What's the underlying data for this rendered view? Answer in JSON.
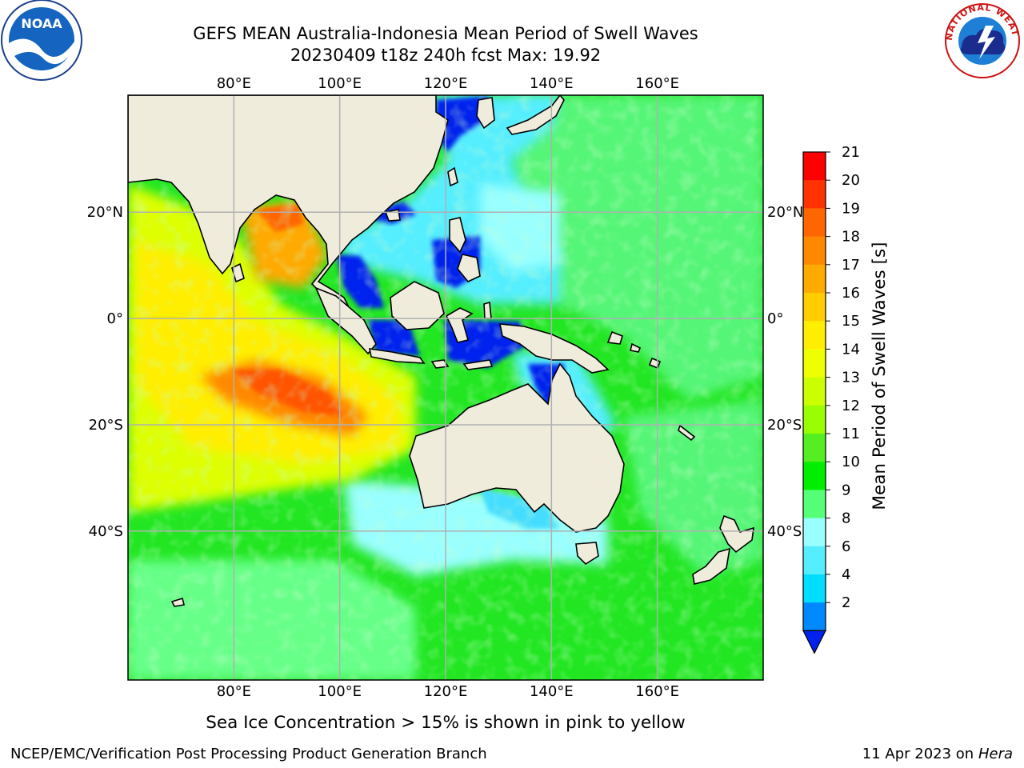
{
  "header": {
    "title_line1": "GEFS MEAN Australia-Indonesia Mean Period of Swell Waves",
    "title_line2": "20230409 t18z 240h fcst   Max: 19.92"
  },
  "logos": {
    "noaa": {
      "name": "noaa-logo",
      "text": "NOAA"
    },
    "nws": {
      "name": "nws-logo",
      "text": "NATIONAL WEATHER SERVICE"
    }
  },
  "map": {
    "lon_ticks": [
      "80°E",
      "100°E",
      "120°E",
      "140°E",
      "160°E"
    ],
    "lat_ticks": [
      "20°N",
      "0°",
      "20°S",
      "40°S"
    ],
    "lon_range": [
      60,
      180
    ],
    "lat_range": [
      -68,
      42
    ],
    "land_color": "#efecdc"
  },
  "colorbar": {
    "label": "Mean Period of Swell Waves [s]",
    "ticks": [
      "21",
      "20",
      "19",
      "18",
      "17",
      "16",
      "15",
      "14",
      "13",
      "12",
      "11",
      "10",
      "9",
      "8",
      "6",
      "4",
      "2"
    ],
    "colors_top_to_bottom": [
      "#ff0000",
      "#ff3300",
      "#ff6600",
      "#ff8800",
      "#ffaa00",
      "#ffcc00",
      "#ffee00",
      "#eeff00",
      "#ccff00",
      "#99ff00",
      "#55ee22",
      "#00ee00",
      "#55ff77",
      "#99ffff",
      "#55eeff",
      "#00ddff",
      "#0088ff"
    ],
    "extend_color": "#0022ee"
  },
  "note": "Sea Ice Concentration > 15% is shown in pink to yellow",
  "footer": {
    "left": "NCEP/EMC/Verification Post Processing Product Generation Branch",
    "date": "11 Apr 2023 on ",
    "host": "Hera"
  }
}
